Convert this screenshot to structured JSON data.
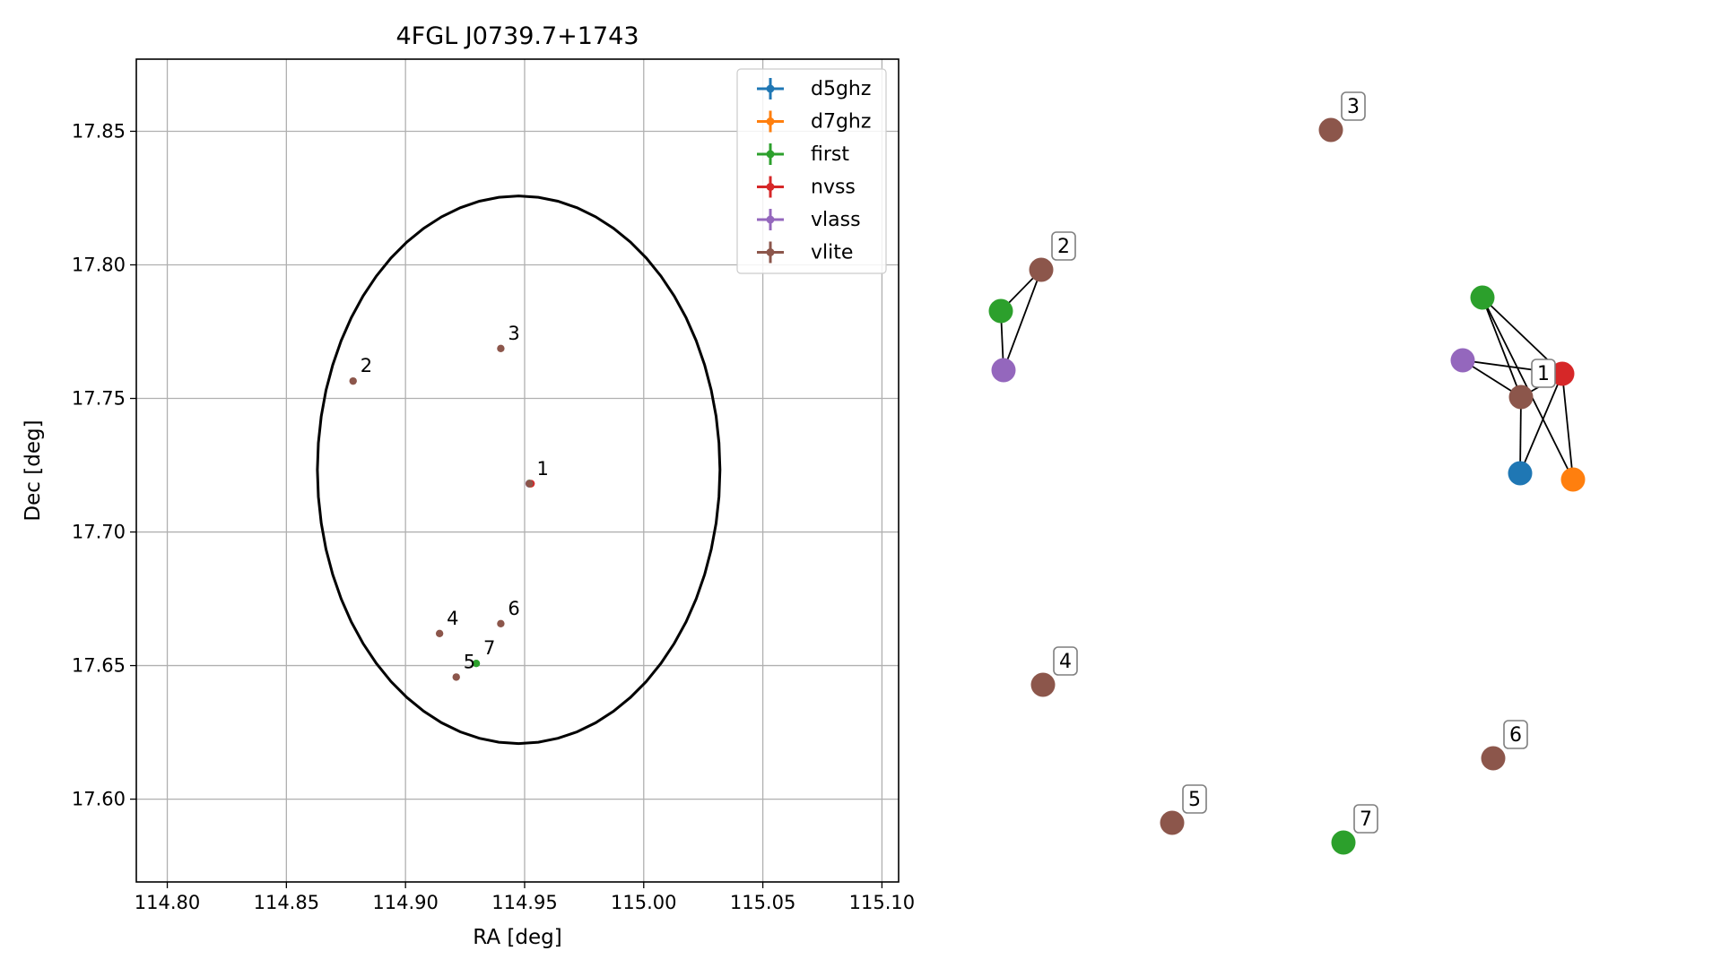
{
  "chart_data": [
    {
      "type": "scatter",
      "title": "4FGL J0739.7+1743",
      "xlabel": "RA [deg]",
      "ylabel": "Dec [deg]",
      "xlim": [
        114.787,
        115.107
      ],
      "ylim": [
        17.569,
        17.877
      ],
      "x_ticks": [
        "114.80",
        "114.85",
        "114.90",
        "114.95",
        "115.00",
        "115.05",
        "115.10"
      ],
      "y_ticks": [
        "17.60",
        "17.65",
        "17.70",
        "17.75",
        "17.80",
        "17.85"
      ],
      "grid": true,
      "legend_placement": "top-right",
      "ellipse": {
        "center_ra": 114.9475,
        "center_dec": 17.7233,
        "half_width_ra": 0.0845,
        "half_height_dec": 0.1025,
        "color": "#000000"
      },
      "series": [
        {
          "name": "d5ghz",
          "color": "#1f77b4",
          "points": [
            {
              "ra": 114.9521,
              "dec": 17.718,
              "label": "1"
            }
          ]
        },
        {
          "name": "d7ghz",
          "color": "#ff7f0e",
          "points": [
            {
              "ra": 114.9524,
              "dec": 17.718
            }
          ]
        },
        {
          "name": "first",
          "color": "#2ca02c",
          "points": [
            {
              "ra": 114.952,
              "dec": 17.7182
            },
            {
              "ra": 114.9297,
              "dec": 17.6508,
              "label": "7"
            }
          ]
        },
        {
          "name": "nvss",
          "color": "#d62728",
          "points": [
            {
              "ra": 114.9527,
              "dec": 17.7181
            }
          ]
        },
        {
          "name": "vlass",
          "color": "#9467bd",
          "points": [
            {
              "ra": 114.9519,
              "dec": 17.7181
            }
          ]
        },
        {
          "name": "vlite",
          "color": "#8c564b",
          "points": [
            {
              "ra": 114.952,
              "dec": 17.7181
            },
            {
              "ra": 114.878,
              "dec": 17.7565,
              "label": "2"
            },
            {
              "ra": 114.94,
              "dec": 17.7687,
              "label": "3"
            },
            {
              "ra": 114.9143,
              "dec": 17.662,
              "label": "4"
            },
            {
              "ra": 114.9213,
              "dec": 17.6457,
              "label": "5"
            },
            {
              "ra": 114.94,
              "dec": 17.6657,
              "label": "6"
            }
          ]
        }
      ]
    },
    {
      "type": "network",
      "nodes": [
        {
          "id": "g1-vlite",
          "survey": "vlite",
          "color": "#8c564b",
          "label": "1"
        },
        {
          "id": "g1-d5ghz",
          "survey": "d5ghz",
          "color": "#1f77b4"
        },
        {
          "id": "g1-d7ghz",
          "survey": "d7ghz",
          "color": "#ff7f0e"
        },
        {
          "id": "g1-first",
          "survey": "first",
          "color": "#2ca02c"
        },
        {
          "id": "g1-nvss",
          "survey": "nvss",
          "color": "#d62728"
        },
        {
          "id": "g1-vlass",
          "survey": "vlass",
          "color": "#9467bd"
        },
        {
          "id": "g2-vlite",
          "survey": "vlite",
          "color": "#8c564b",
          "label": "2"
        },
        {
          "id": "g2-first",
          "survey": "first",
          "color": "#2ca02c"
        },
        {
          "id": "g2-vlass",
          "survey": "vlass",
          "color": "#9467bd"
        },
        {
          "id": "g3-vlite",
          "survey": "vlite",
          "color": "#8c564b",
          "label": "3"
        },
        {
          "id": "g4-vlite",
          "survey": "vlite",
          "color": "#8c564b",
          "label": "4"
        },
        {
          "id": "g5-vlite",
          "survey": "vlite",
          "color": "#8c564b",
          "label": "5"
        },
        {
          "id": "g6-vlite",
          "survey": "vlite",
          "color": "#8c564b",
          "label": "6"
        },
        {
          "id": "g7-first",
          "survey": "first",
          "color": "#2ca02c",
          "label": "7"
        }
      ],
      "edges": [
        [
          "g1-vlite",
          "g1-d5ghz"
        ],
        [
          "g1-vlite",
          "g1-first"
        ],
        [
          "g1-vlite",
          "g1-nvss"
        ],
        [
          "g1-vlite",
          "g1-vlass"
        ],
        [
          "g1-nvss",
          "g1-first"
        ],
        [
          "g1-nvss",
          "g1-vlass"
        ],
        [
          "g1-nvss",
          "g1-d5ghz"
        ],
        [
          "g1-nvss",
          "g1-d7ghz"
        ],
        [
          "g1-first",
          "g1-d7ghz"
        ],
        [
          "g2-vlite",
          "g2-first"
        ],
        [
          "g2-vlite",
          "g2-vlass"
        ],
        [
          "g2-first",
          "g2-vlass"
        ]
      ]
    }
  ]
}
